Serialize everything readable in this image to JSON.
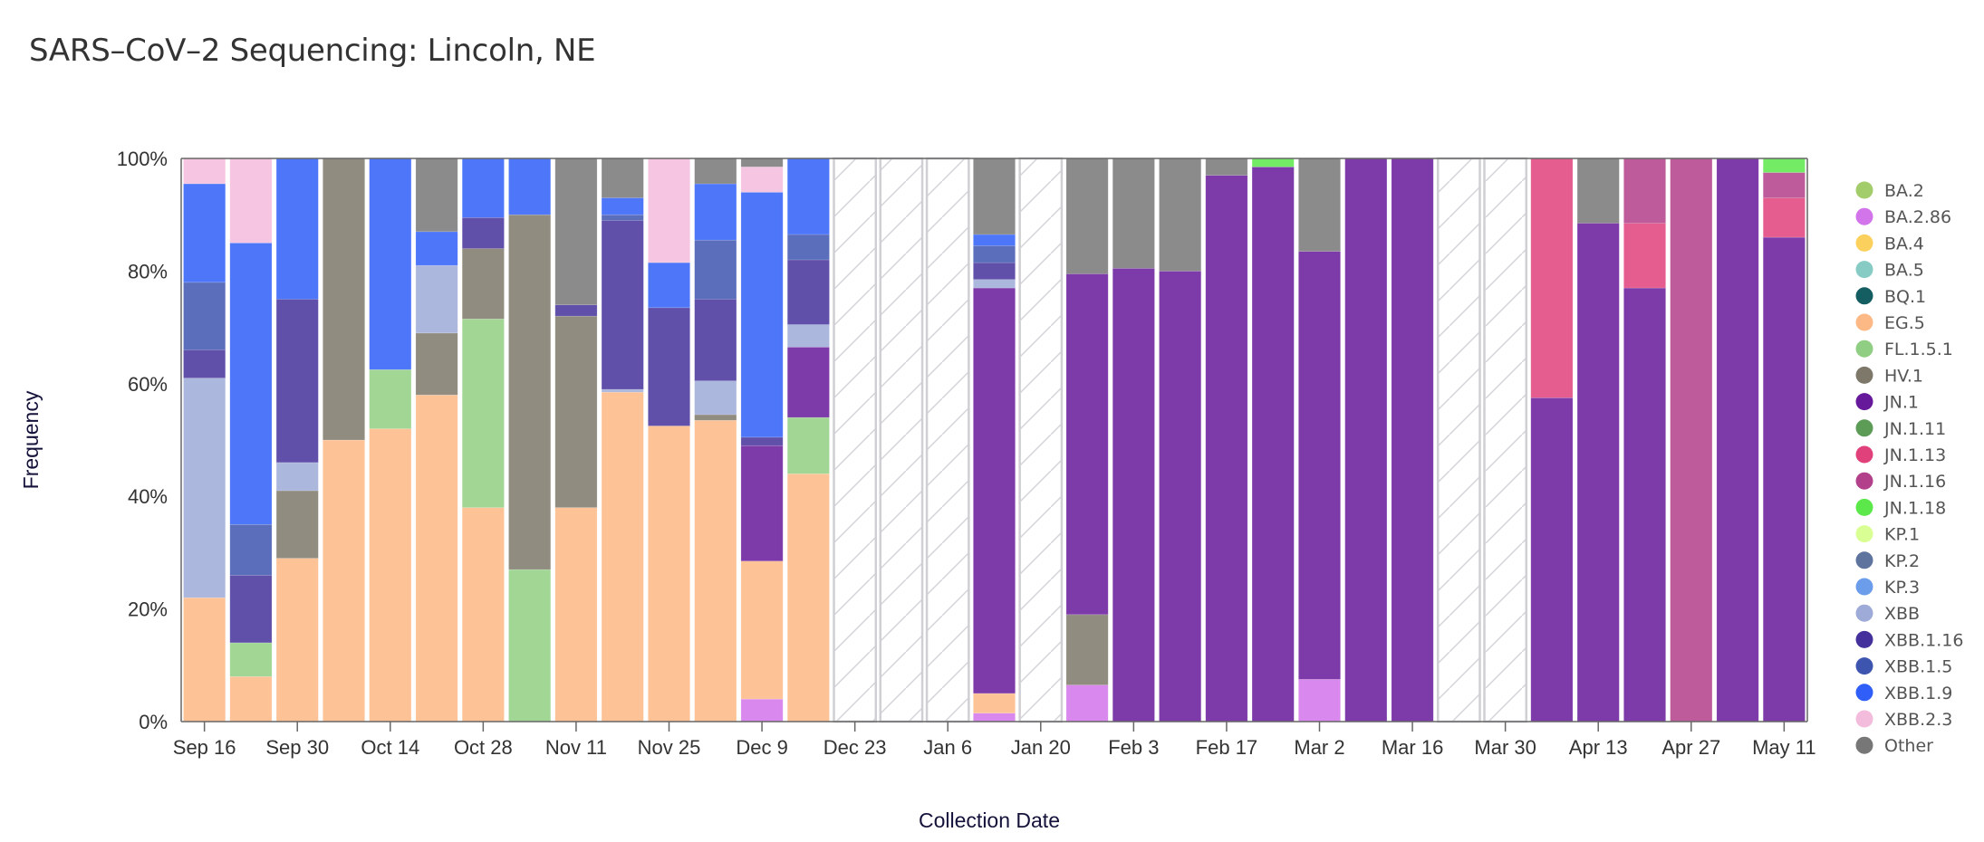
{
  "title": "SARS–CoV–2 Sequencing: Lincoln, NE",
  "chart_data": {
    "type": "bar",
    "stacked": true,
    "normalized": true,
    "title": "SARS–CoV–2 Sequencing: Lincoln, NE",
    "xlabel": "Collection Date",
    "ylabel": "Frequency",
    "ylim": [
      0,
      100
    ],
    "yticks": [
      "0%",
      "20%",
      "40%",
      "60%",
      "80%",
      "100%"
    ],
    "ytick_values": [
      0,
      20,
      40,
      60,
      80,
      100
    ],
    "xtick_labels": [
      "Sep 16",
      "Sep 30",
      "Oct 14",
      "Oct 28",
      "Nov 11",
      "Nov 25",
      "Dec 9",
      "Dec 23",
      "Jan 6",
      "Jan 20",
      "Feb 3",
      "Feb 17",
      "Mar 2",
      "Mar 16",
      "Mar 30",
      "Apr 13",
      "Apr 27",
      "May 11"
    ],
    "xtick_every": 2,
    "legend_position": "right",
    "legend": [
      {
        "name": "BA.2",
        "color": "#a3cc6b"
      },
      {
        "name": "BA.2.86",
        "color": "#d274ea"
      },
      {
        "name": "BA.4",
        "color": "#fbd05c"
      },
      {
        "name": "BA.5",
        "color": "#86ccc4"
      },
      {
        "name": "BQ.1",
        "color": "#145e62"
      },
      {
        "name": "EG.5",
        "color": "#fdb985"
      },
      {
        "name": "FL.1.5.1",
        "color": "#90cf83"
      },
      {
        "name": "HV.1",
        "color": "#7d786a"
      },
      {
        "name": "JN.1",
        "color": "#66199a"
      },
      {
        "name": "JN.1.11",
        "color": "#5c9c56"
      },
      {
        "name": "JN.1.13",
        "color": "#e1417a"
      },
      {
        "name": "JN.1.16",
        "color": "#b3408a"
      },
      {
        "name": "JN.1.18",
        "color": "#5ce84a"
      },
      {
        "name": "KP.1",
        "color": "#d9fe93"
      },
      {
        "name": "KP.2",
        "color": "#5e739e"
      },
      {
        "name": "KP.3",
        "color": "#6b9deb"
      },
      {
        "name": "XBB",
        "color": "#9eaad7"
      },
      {
        "name": "XBB.1.16",
        "color": "#44319b"
      },
      {
        "name": "XBB.1.5",
        "color": "#3d55af"
      },
      {
        "name": "XBB.1.9",
        "color": "#2f5ef8"
      },
      {
        "name": "XBB.2.3",
        "color": "#f3bbdc"
      },
      {
        "name": "Other",
        "color": "#777777"
      }
    ],
    "categories": [
      "Sep 16",
      "Sep 23",
      "Sep 30",
      "Oct 7",
      "Oct 14",
      "Oct 21",
      "Oct 28",
      "Nov 4",
      "Nov 11",
      "Nov 18",
      "Nov 25",
      "Dec 2",
      "Dec 9",
      "Dec 16",
      "Dec 23",
      "Dec 30",
      "Jan 6",
      "Jan 13",
      "Jan 20",
      "Jan 27",
      "Feb 3",
      "Feb 10",
      "Feb 17",
      "Feb 24",
      "Mar 2",
      "Mar 9",
      "Mar 16",
      "Mar 23",
      "Mar 30",
      "Apr 6",
      "Apr 13",
      "Apr 20",
      "Apr 27",
      "May 4",
      "May 11"
    ],
    "bars": [
      {
        "date": "Sep 16",
        "segments": [
          [
            "EG.5",
            22
          ],
          [
            "XBB",
            39
          ],
          [
            "XBB.1.16",
            5
          ],
          [
            "XBB.1.5",
            12
          ],
          [
            "XBB.1.9",
            17.5
          ],
          [
            "XBB.2.3",
            4.5
          ]
        ]
      },
      {
        "date": "Sep 23",
        "segments": [
          [
            "EG.5",
            8
          ],
          [
            "FL.1.5.1",
            6
          ],
          [
            "XBB.1.16",
            12
          ],
          [
            "XBB.1.5",
            9
          ],
          [
            "XBB.1.9",
            50
          ],
          [
            "XBB.2.3",
            15
          ]
        ]
      },
      {
        "date": "Sep 30",
        "segments": [
          [
            "EG.5",
            29
          ],
          [
            "HV.1",
            12
          ],
          [
            "XBB",
            5
          ],
          [
            "XBB.1.16",
            29
          ],
          [
            "XBB.1.9",
            25
          ]
        ]
      },
      {
        "date": "Oct 7",
        "segments": [
          [
            "EG.5",
            50
          ],
          [
            "HV.1",
            50
          ]
        ]
      },
      {
        "date": "Oct 14",
        "segments": [
          [
            "EG.5",
            52
          ],
          [
            "FL.1.5.1",
            10.5
          ],
          [
            "XBB.1.9",
            37.5
          ]
        ]
      },
      {
        "date": "Oct 21",
        "segments": [
          [
            "EG.5",
            58
          ],
          [
            "HV.1",
            11
          ],
          [
            "XBB",
            12
          ],
          [
            "XBB.1.9",
            6
          ],
          [
            "Other",
            13
          ]
        ]
      },
      {
        "date": "Oct 28",
        "segments": [
          [
            "EG.5",
            38
          ],
          [
            "FL.1.5.1",
            33.5
          ],
          [
            "HV.1",
            12.5
          ],
          [
            "XBB.1.16",
            5.5
          ],
          [
            "XBB.1.9",
            10.5
          ]
        ]
      },
      {
        "date": "Nov 4",
        "segments": [
          [
            "FL.1.5.1",
            27
          ],
          [
            "HV.1",
            63
          ],
          [
            "XBB.1.9",
            10
          ]
        ]
      },
      {
        "date": "Nov 11",
        "segments": [
          [
            "EG.5",
            38
          ],
          [
            "HV.1",
            34
          ],
          [
            "XBB.1.16",
            2
          ],
          [
            "Other",
            26
          ]
        ]
      },
      {
        "date": "Nov 18",
        "segments": [
          [
            "EG.5",
            58.5
          ],
          [
            "XBB",
            0.5
          ],
          [
            "XBB.1.16",
            30
          ],
          [
            "XBB.1.5",
            1
          ],
          [
            "XBB.1.9",
            3
          ],
          [
            "Other",
            7
          ]
        ]
      },
      {
        "date": "Nov 25",
        "segments": [
          [
            "EG.5",
            52.5
          ],
          [
            "XBB.1.16",
            21
          ],
          [
            "XBB.1.9",
            8
          ],
          [
            "XBB.2.3",
            18.5
          ]
        ]
      },
      {
        "date": "Dec 2",
        "segments": [
          [
            "EG.5",
            53.5
          ],
          [
            "HV.1",
            1
          ],
          [
            "XBB",
            6
          ],
          [
            "XBB.1.16",
            14.5
          ],
          [
            "XBB.1.5",
            10.5
          ],
          [
            "XBB.1.9",
            10
          ],
          [
            "Other",
            4.5
          ]
        ]
      },
      {
        "date": "Dec 9",
        "segments": [
          [
            "BA.2.86",
            4
          ],
          [
            "EG.5",
            24.5
          ],
          [
            "JN.1",
            20.5
          ],
          [
            "XBB.1.16",
            1.5
          ],
          [
            "XBB.1.9",
            43.5
          ],
          [
            "XBB.2.3",
            4.5
          ],
          [
            "Other",
            1.5
          ]
        ]
      },
      {
        "date": "Dec 16",
        "segments": [
          [
            "EG.5",
            44
          ],
          [
            "FL.1.5.1",
            10
          ],
          [
            "JN.1",
            12.5
          ],
          [
            "XBB",
            4
          ],
          [
            "XBB.1.16",
            11.5
          ],
          [
            "XBB.1.5",
            4.5
          ],
          [
            "XBB.1.9",
            13.5
          ]
        ]
      },
      {
        "date": "Dec 23",
        "no_data": true,
        "segments": []
      },
      {
        "date": "Dec 30",
        "no_data": true,
        "segments": []
      },
      {
        "date": "Jan 6",
        "no_data": true,
        "segments": []
      },
      {
        "date": "Jan 13",
        "segments": [
          [
            "BA.2.86",
            1.5
          ],
          [
            "EG.5",
            3.5
          ],
          [
            "JN.1",
            72
          ],
          [
            "XBB",
            1.5
          ],
          [
            "XBB.1.16",
            3
          ],
          [
            "XBB.1.5",
            3
          ],
          [
            "XBB.1.9",
            2
          ],
          [
            "Other",
            13.5
          ]
        ]
      },
      {
        "date": "Jan 20",
        "no_data": true,
        "segments": []
      },
      {
        "date": "Jan 27",
        "segments": [
          [
            "BA.2.86",
            6.5
          ],
          [
            "HV.1",
            12.5
          ],
          [
            "JN.1",
            60.5
          ],
          [
            "Other",
            20.5
          ]
        ]
      },
      {
        "date": "Feb 3",
        "segments": [
          [
            "JN.1",
            80.5
          ],
          [
            "Other",
            19.5
          ]
        ]
      },
      {
        "date": "Feb 10",
        "segments": [
          [
            "JN.1",
            80
          ],
          [
            "Other",
            20
          ]
        ]
      },
      {
        "date": "Feb 17",
        "segments": [
          [
            "JN.1",
            97
          ],
          [
            "Other",
            3
          ]
        ]
      },
      {
        "date": "Feb 24",
        "segments": [
          [
            "JN.1",
            98.5
          ],
          [
            "JN.1.18",
            1.5
          ]
        ]
      },
      {
        "date": "Mar 2",
        "segments": [
          [
            "BA.2.86",
            7.5
          ],
          [
            "JN.1",
            76
          ],
          [
            "Other",
            16.5
          ]
        ]
      },
      {
        "date": "Mar 9",
        "segments": [
          [
            "JN.1",
            100
          ]
        ]
      },
      {
        "date": "Mar 16",
        "segments": [
          [
            "JN.1",
            100
          ]
        ]
      },
      {
        "date": "Mar 23",
        "no_data": true,
        "segments": []
      },
      {
        "date": "Mar 30",
        "no_data": true,
        "segments": []
      },
      {
        "date": "Apr 6",
        "segments": [
          [
            "JN.1",
            57.5
          ],
          [
            "JN.1.13",
            42.5
          ]
        ]
      },
      {
        "date": "Apr 13",
        "segments": [
          [
            "JN.1",
            88.5
          ],
          [
            "Other",
            11.5
          ]
        ]
      },
      {
        "date": "Apr 20",
        "segments": [
          [
            "JN.1",
            77
          ],
          [
            "JN.1.13",
            11.5
          ],
          [
            "JN.1.16",
            11.5
          ]
        ]
      },
      {
        "date": "Apr 27",
        "segments": [
          [
            "JN.1.16",
            100
          ]
        ]
      },
      {
        "date": "May 4",
        "segments": [
          [
            "JN.1",
            100
          ]
        ]
      },
      {
        "date": "May 11",
        "segments": [
          [
            "JN.1",
            86
          ],
          [
            "JN.1.13",
            7
          ],
          [
            "JN.1.16",
            4.5
          ],
          [
            "JN.1.18",
            2.5
          ]
        ]
      }
    ]
  }
}
